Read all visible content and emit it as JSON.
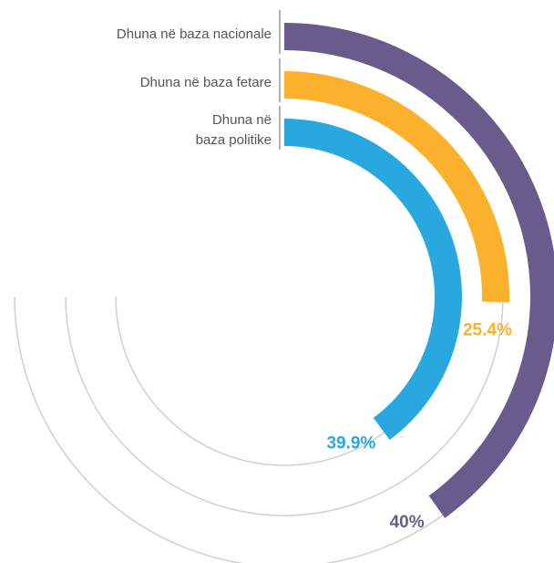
{
  "chart_data": {
    "type": "radial-bar",
    "ylim": [
      0,
      100
    ],
    "series": [
      {
        "name": "Dhuna në baza nacionale",
        "color": "#695b8c",
        "values": [
          40
        ],
        "value_labels": [
          "40%"
        ]
      },
      {
        "name": "Dhuna në baza fetare",
        "color": "#fbb12c",
        "values": [
          25.4
        ],
        "value_labels": [
          "25.4%"
        ]
      },
      {
        "name": "Dhuna në\nbaza politike",
        "color": "#29a8e0",
        "values": [
          39.9
        ],
        "value_labels": [
          "39.9%"
        ]
      }
    ]
  }
}
